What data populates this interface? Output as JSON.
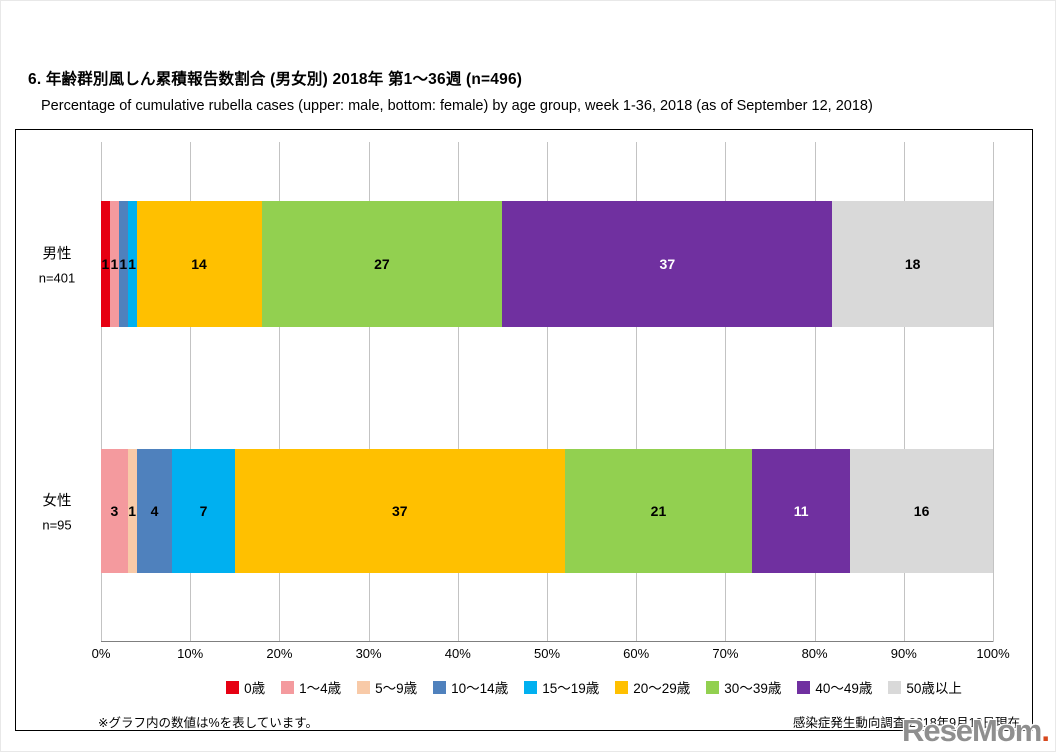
{
  "page": {
    "title": "6. 年齢群別風しん累積報告数割合 (男女別)  2018年 第1〜36週 (n=496)",
    "subtitle": "Percentage of cumulative rubella cases (upper: male, bottom: female) by age group, week 1-36, 2018 (as of September 12, 2018)",
    "note_left": "※グラフ内の数値は%を表しています。",
    "note_right": "感染症発生動向調査 2018年9月12日現在",
    "watermark": {
      "brand": "ReseMom",
      "dot": "."
    }
  },
  "chart_data": {
    "type": "bar",
    "orientation": "horizontal-stacked",
    "value_unit": "%",
    "title": "6. 年齢群別風しん累積報告数割合 (男女別)  2018年 第1〜36週 (n=496)",
    "categories": [
      "0歳",
      "1〜4歳",
      "5〜9歳",
      "10〜14歳",
      "15〜19歳",
      "20〜29歳",
      "30〜39歳",
      "40〜49歳",
      "50歳以上"
    ],
    "colors": [
      "#e60012",
      "#f49a9e",
      "#f8caa8",
      "#4f81bd",
      "#00b0f0",
      "#ffc000",
      "#92d050",
      "#7030a0",
      "#d9d9d9"
    ],
    "value_text_colors": [
      "#000000",
      "#000000",
      "#000000",
      "#000000",
      "#000000",
      "#000000",
      "#000000",
      "#ffffff",
      "#000000"
    ],
    "series": [
      {
        "name": "男性",
        "n_label": "n=401",
        "values": [
          1,
          1,
          0,
          1,
          1,
          14,
          27,
          37,
          18
        ]
      },
      {
        "name": "女性",
        "n_label": "n=95",
        "values": [
          0,
          3,
          1,
          4,
          7,
          37,
          21,
          11,
          16
        ]
      }
    ],
    "x_axis": {
      "min": 0,
      "max": 100,
      "tick_labels": [
        "0%",
        "10%",
        "20%",
        "30%",
        "40%",
        "50%",
        "60%",
        "70%",
        "80%",
        "90%",
        "100%"
      ]
    },
    "grid": true,
    "legend_position": "bottom"
  }
}
